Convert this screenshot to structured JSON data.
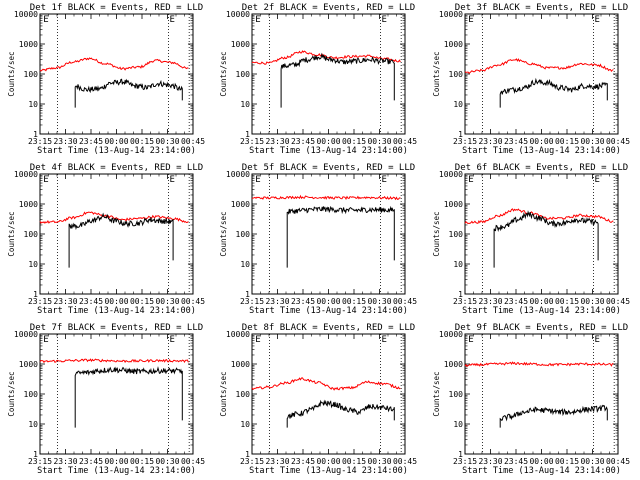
{
  "chart_data": [
    {
      "type": "line",
      "title": "Det 1f BLACK = Events, RED = LLD",
      "xlabel": "Start Time (13-Aug-14 23:14:00)",
      "ylabel": "Counts/sec",
      "yscale": "log",
      "ylim": [
        1,
        10000
      ],
      "xticks": [
        "23:15",
        "23:30",
        "23:45",
        "00:00",
        "00:15",
        "00:30",
        "00:45"
      ],
      "yticks": [
        "1",
        "10",
        "100",
        "1000",
        "10000"
      ],
      "marker_labels": [
        "E",
        "E"
      ],
      "series": [
        {
          "color": "#000000",
          "start": 23,
          "end": 93,
          "values": [
            40,
            30,
            32,
            50,
            55,
            40,
            35,
            48,
            42,
            30
          ]
        },
        {
          "color": "#ff0000",
          "start": 0,
          "end": 97,
          "values": [
            130,
            160,
            250,
            330,
            220,
            150,
            170,
            280,
            240,
            150
          ]
        }
      ]
    },
    {
      "type": "line",
      "title": "Det 2f BLACK = Events, RED = LLD",
      "xlabel": "Start Time (13-Aug-14 23:14:00)",
      "ylabel": "Counts/sec",
      "yscale": "log",
      "ylim": [
        1,
        10000
      ],
      "xticks": [
        "23:15",
        "23:30",
        "23:45",
        "00:00",
        "00:15",
        "00:30",
        "00:45"
      ],
      "yticks": [
        "1",
        "10",
        "100",
        "1000",
        "10000"
      ],
      "marker_labels": [
        "E",
        "E"
      ],
      "series": [
        {
          "color": "#000000",
          "start": 19,
          "end": 93,
          "values": [
            180,
            200,
            300,
            380,
            300,
            250,
            270,
            300,
            270,
            250
          ]
        },
        {
          "color": "#ff0000",
          "start": 0,
          "end": 97,
          "values": [
            240,
            230,
            350,
            550,
            440,
            350,
            380,
            400,
            320,
            270
          ]
        }
      ]
    },
    {
      "type": "line",
      "title": "Det 3f BLACK = Events, RED = LLD",
      "xlabel": "Start Time (13-Aug-14 23:14:00)",
      "ylabel": "Counts/sec",
      "yscale": "log",
      "ylim": [
        1,
        10000
      ],
      "xticks": [
        "23:15",
        "23:30",
        "23:45",
        "00:00",
        "00:15",
        "00:30",
        "00:45"
      ],
      "yticks": [
        "1",
        "10",
        "100",
        "1000",
        "10000"
      ],
      "marker_labels": [
        "E",
        "E"
      ],
      "series": [
        {
          "color": "#000000",
          "start": 23,
          "end": 93,
          "values": [
            25,
            30,
            35,
            55,
            50,
            35,
            30,
            40,
            38,
            42
          ]
        },
        {
          "color": "#ff0000",
          "start": 0,
          "end": 97,
          "values": [
            110,
            130,
            200,
            300,
            220,
            160,
            160,
            220,
            200,
            130
          ]
        }
      ]
    },
    {
      "type": "line",
      "title": "Det 4f BLACK = Events, RED = LLD",
      "xlabel": "Start Time (13-Aug-14 23:14:00)",
      "ylabel": "Counts/sec",
      "yscale": "log",
      "ylim": [
        1,
        10000
      ],
      "xticks": [
        "23:15",
        "23:30",
        "23:45",
        "00:00",
        "00:15",
        "00:30",
        "00:45"
      ],
      "yticks": [
        "1",
        "10",
        "100",
        "1000",
        "10000"
      ],
      "marker_labels": [
        "E",
        "E"
      ],
      "series": [
        {
          "color": "#000000",
          "start": 19,
          "end": 87,
          "values": [
            180,
            190,
            280,
            380,
            270,
            220,
            230,
            300,
            270,
            250
          ]
        },
        {
          "color": "#ff0000",
          "start": 0,
          "end": 97,
          "values": [
            250,
            250,
            350,
            520,
            400,
            300,
            330,
            380,
            330,
            260
          ]
        }
      ]
    },
    {
      "type": "line",
      "title": "Det 5f BLACK = Events, RED = LLD",
      "xlabel": "Start Time (13-Aug-14 23:14:00)",
      "ylabel": "Counts/sec",
      "yscale": "log",
      "ylim": [
        1,
        10000
      ],
      "xticks": [
        "23:15",
        "23:30",
        "23:45",
        "00:00",
        "00:15",
        "00:30",
        "00:45"
      ],
      "yticks": [
        "1",
        "10",
        "100",
        "1000",
        "10000"
      ],
      "marker_labels": [
        "E",
        "E"
      ],
      "series": [
        {
          "color": "#000000",
          "start": 23,
          "end": 93,
          "values": [
            550,
            600,
            650,
            680,
            650,
            620,
            620,
            650,
            640,
            620
          ]
        },
        {
          "color": "#ff0000",
          "start": 0,
          "end": 97,
          "values": [
            1600,
            1600,
            1650,
            1700,
            1650,
            1600,
            1600,
            1650,
            1600,
            1550
          ]
        }
      ]
    },
    {
      "type": "line",
      "title": "Det 6f BLACK = Events, RED = LLD",
      "xlabel": "Start Time (13-Aug-14 23:14:00)",
      "ylabel": "Counts/sec",
      "yscale": "log",
      "ylim": [
        1,
        10000
      ],
      "xticks": [
        "23:15",
        "23:30",
        "23:45",
        "00:00",
        "00:15",
        "00:30",
        "00:45"
      ],
      "yticks": [
        "1",
        "10",
        "100",
        "1000",
        "10000"
      ],
      "marker_labels": [
        "E",
        "E"
      ],
      "series": [
        {
          "color": "#000000",
          "start": 19,
          "end": 87,
          "values": [
            160,
            180,
            300,
            450,
            330,
            220,
            230,
            300,
            270,
            240
          ]
        },
        {
          "color": "#ff0000",
          "start": 0,
          "end": 97,
          "values": [
            240,
            250,
            400,
            650,
            500,
            330,
            340,
            420,
            380,
            260
          ]
        }
      ]
    },
    {
      "type": "line",
      "title": "Det 7f BLACK = Events, RED = LLD",
      "xlabel": "Start Time (13-Aug-14 23:14:00)",
      "ylabel": "Counts/sec",
      "yscale": "log",
      "ylim": [
        1,
        10000
      ],
      "xticks": [
        "23:15",
        "23:30",
        "23:45",
        "00:00",
        "00:15",
        "00:30",
        "00:45"
      ],
      "yticks": [
        "1",
        "10",
        "100",
        "1000",
        "10000"
      ],
      "marker_labels": [
        "E",
        "E"
      ],
      "series": [
        {
          "color": "#000000",
          "start": 23,
          "end": 93,
          "values": [
            480,
            520,
            600,
            650,
            620,
            560,
            560,
            600,
            590,
            580
          ]
        },
        {
          "color": "#ff0000",
          "start": 0,
          "end": 97,
          "values": [
            1200,
            1250,
            1300,
            1350,
            1300,
            1250,
            1260,
            1300,
            1280,
            1250
          ]
        }
      ]
    },
    {
      "type": "line",
      "title": "Det 8f BLACK = Events, RED = LLD",
      "xlabel": "Start Time (13-Aug-14 23:14:00)",
      "ylabel": "Counts/sec",
      "yscale": "log",
      "ylim": [
        1,
        10000
      ],
      "xticks": [
        "23:15",
        "23:30",
        "23:45",
        "00:00",
        "00:15",
        "00:30",
        "00:45"
      ],
      "yticks": [
        "1",
        "10",
        "100",
        "1000",
        "10000"
      ],
      "marker_labels": [
        "E",
        "E"
      ],
      "series": [
        {
          "color": "#000000",
          "start": 23,
          "end": 93,
          "values": [
            18,
            22,
            30,
            50,
            45,
            30,
            25,
            38,
            35,
            30
          ]
        },
        {
          "color": "#ff0000",
          "start": 0,
          "end": 97,
          "values": [
            150,
            170,
            230,
            320,
            240,
            150,
            160,
            250,
            220,
            160
          ]
        }
      ]
    },
    {
      "type": "line",
      "title": "Det 9f BLACK = Events, RED = LLD",
      "xlabel": "Start Time (13-Aug-14 23:14:00)",
      "ylabel": "Counts/sec",
      "yscale": "log",
      "ylim": [
        1,
        10000
      ],
      "xticks": [
        "23:15",
        "23:30",
        "23:45",
        "00:00",
        "00:15",
        "00:30",
        "00:45"
      ],
      "yticks": [
        "1",
        "10",
        "100",
        "1000",
        "10000"
      ],
      "marker_labels": [
        "E",
        "E"
      ],
      "series": [
        {
          "color": "#000000",
          "start": 23,
          "end": 93,
          "values": [
            15,
            18,
            25,
            30,
            28,
            25,
            25,
            30,
            32,
            35
          ]
        },
        {
          "color": "#ff0000",
          "start": 0,
          "end": 97,
          "values": [
            900,
            950,
            1000,
            1050,
            1000,
            950,
            960,
            1000,
            980,
            950
          ]
        }
      ]
    }
  ]
}
